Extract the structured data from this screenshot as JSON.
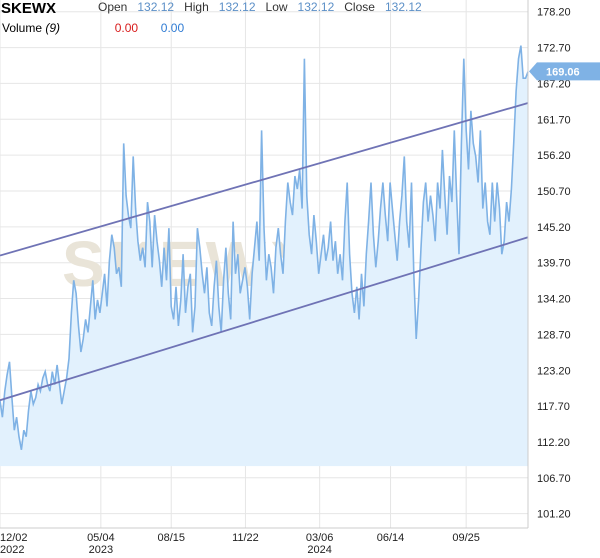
{
  "header": {
    "ticker": "SKEWX",
    "open_label": "Open",
    "open_value": "132.12",
    "high_label": "High",
    "high_value": "132.12",
    "low_label": "Low",
    "low_value": "132.12",
    "close_label": "Close",
    "close_value": "132.12",
    "volume_label": "Volume",
    "volume_period": "(9)",
    "volume_value_1": "0.00",
    "volume_value_2": "0.00"
  },
  "watermark": "SKEWX",
  "colors": {
    "line": "#7fb2e5",
    "area": "#e2f1fd",
    "trendline": "#6f73b5",
    "last_tag": "#7fb2e5",
    "grid": "#e6e6e6"
  },
  "chart_data": {
    "type": "area",
    "title": "SKEWX",
    "last_value": "169.06",
    "ylim": [
      99,
      180
    ],
    "y_ticks": [
      "178.20",
      "172.70",
      "167.20",
      "161.70",
      "156.20",
      "150.70",
      "145.20",
      "139.70",
      "134.20",
      "128.70",
      "123.20",
      "117.70",
      "112.20",
      "106.70",
      "101.20"
    ],
    "x_ticks": [
      {
        "top": "12/02",
        "bottom": "2022"
      },
      {
        "top": "05/04",
        "bottom": "2023"
      },
      {
        "top": "08/15",
        "bottom": ""
      },
      {
        "top": "11/22",
        "bottom": ""
      },
      {
        "top": "03/06",
        "bottom": "2024"
      },
      {
        "top": "06/14",
        "bottom": ""
      },
      {
        "top": "09/25",
        "bottom": ""
      }
    ],
    "x_tick_positions": [
      0,
      21.2,
      36.0,
      51.6,
      67.2,
      82.1,
      98.0
    ],
    "series": [
      {
        "values": [
          [
            0,
            118.5
          ],
          [
            0.5,
            116
          ],
          [
            1,
            120
          ],
          [
            1.5,
            122.5
          ],
          [
            2,
            124.5
          ],
          [
            2.5,
            119
          ],
          [
            3,
            114
          ],
          [
            3.5,
            116
          ],
          [
            4,
            113
          ],
          [
            4.5,
            111
          ],
          [
            5,
            114
          ],
          [
            5.5,
            113
          ],
          [
            6,
            117
          ],
          [
            6.5,
            120
          ],
          [
            7,
            118
          ],
          [
            7.5,
            119
          ],
          [
            8,
            121
          ],
          [
            8.5,
            120
          ],
          [
            9,
            122
          ],
          [
            9.5,
            123
          ],
          [
            10,
            121
          ],
          [
            10.5,
            120
          ],
          [
            11,
            123
          ],
          [
            11.5,
            121
          ],
          [
            12,
            124
          ],
          [
            12.5,
            121
          ],
          [
            13,
            118
          ],
          [
            13.5,
            120
          ],
          [
            14,
            122
          ],
          [
            14.5,
            125
          ],
          [
            15,
            132
          ],
          [
            15.5,
            137
          ],
          [
            16,
            135
          ],
          [
            16.5,
            130
          ],
          [
            17,
            126
          ],
          [
            17.5,
            128
          ],
          [
            18,
            131
          ],
          [
            18.5,
            129
          ],
          [
            19,
            133
          ],
          [
            19.5,
            137
          ],
          [
            20,
            131
          ],
          [
            20.5,
            134
          ],
          [
            21,
            132
          ],
          [
            21.5,
            135
          ],
          [
            22,
            138
          ],
          [
            22.5,
            133
          ],
          [
            23,
            140
          ],
          [
            23.5,
            144
          ],
          [
            24,
            142
          ],
          [
            24.5,
            138
          ],
          [
            25,
            139
          ],
          [
            25.5,
            136
          ],
          [
            26,
            158
          ],
          [
            26.5,
            150
          ],
          [
            27,
            147
          ],
          [
            27.5,
            145
          ],
          [
            28,
            156
          ],
          [
            28.5,
            148
          ],
          [
            29,
            143
          ],
          [
            29.5,
            140
          ],
          [
            30,
            142
          ],
          [
            30.5,
            139
          ],
          [
            31,
            149
          ],
          [
            31.5,
            146
          ],
          [
            32,
            139
          ],
          [
            32.5,
            147
          ],
          [
            33,
            143
          ],
          [
            33.5,
            140
          ],
          [
            34,
            136
          ],
          [
            34.5,
            142
          ],
          [
            35,
            137
          ],
          [
            35.5,
            145
          ],
          [
            36,
            133
          ],
          [
            36.5,
            131
          ],
          [
            37,
            136
          ],
          [
            37.5,
            130
          ],
          [
            38,
            134
          ],
          [
            38.5,
            141
          ],
          [
            39,
            132
          ],
          [
            39.5,
            136
          ],
          [
            40,
            138
          ],
          [
            40.5,
            129
          ],
          [
            41,
            133
          ],
          [
            41.5,
            145
          ],
          [
            42,
            142
          ],
          [
            42.5,
            138
          ],
          [
            43,
            135
          ],
          [
            43.5,
            139
          ],
          [
            44,
            132
          ],
          [
            44.5,
            130
          ],
          [
            45,
            136
          ],
          [
            45.5,
            140
          ],
          [
            46,
            133
          ],
          [
            46.5,
            129
          ],
          [
            47,
            137
          ],
          [
            47.5,
            142
          ],
          [
            48,
            135
          ],
          [
            48.5,
            131
          ],
          [
            49,
            146
          ],
          [
            49.5,
            138
          ],
          [
            50,
            141
          ],
          [
            50.5,
            135
          ],
          [
            51,
            137
          ],
          [
            51.5,
            139
          ],
          [
            52,
            136
          ],
          [
            52.5,
            131
          ],
          [
            53,
            138
          ],
          [
            53.5,
            142
          ],
          [
            54,
            146
          ],
          [
            54.5,
            140
          ],
          [
            55,
            160
          ],
          [
            55.5,
            145
          ],
          [
            56,
            137
          ],
          [
            56.5,
            141
          ],
          [
            57,
            139
          ],
          [
            57.5,
            135
          ],
          [
            58,
            142
          ],
          [
            58.5,
            145
          ],
          [
            59,
            141
          ],
          [
            59.5,
            138
          ],
          [
            60,
            146
          ],
          [
            60.5,
            152
          ],
          [
            61,
            149
          ],
          [
            61.5,
            147
          ],
          [
            62,
            153
          ],
          [
            62.5,
            151
          ],
          [
            63,
            154
          ],
          [
            63.5,
            148
          ],
          [
            64,
            171
          ],
          [
            64.5,
            150
          ],
          [
            65,
            144
          ],
          [
            65.5,
            141
          ],
          [
            66,
            147
          ],
          [
            66.5,
            143
          ],
          [
            67,
            138
          ],
          [
            67.5,
            141
          ],
          [
            68,
            144
          ],
          [
            68.5,
            140
          ],
          [
            69,
            142
          ],
          [
            69.5,
            146
          ],
          [
            70,
            140
          ],
          [
            70.5,
            143
          ],
          [
            71,
            138
          ],
          [
            71.5,
            141
          ],
          [
            72,
            137
          ],
          [
            72.5,
            146
          ],
          [
            73,
            152
          ],
          [
            73.5,
            141
          ],
          [
            74,
            135
          ],
          [
            74.5,
            132
          ],
          [
            75,
            136
          ],
          [
            75.5,
            131
          ],
          [
            76,
            138
          ],
          [
            76.5,
            133
          ],
          [
            77,
            141
          ],
          [
            77.5,
            146
          ],
          [
            78,
            152
          ],
          [
            78.5,
            144
          ],
          [
            79,
            139
          ],
          [
            79.5,
            143
          ],
          [
            80,
            148
          ],
          [
            80.5,
            152
          ],
          [
            81,
            147
          ],
          [
            81.5,
            143
          ],
          [
            82,
            152
          ],
          [
            82.5,
            148
          ],
          [
            83,
            144
          ],
          [
            83.5,
            140
          ],
          [
            84,
            146
          ],
          [
            84.5,
            150
          ],
          [
            85,
            156
          ],
          [
            85.5,
            146
          ],
          [
            86,
            142
          ],
          [
            86.5,
            152
          ],
          [
            87,
            138
          ],
          [
            87.5,
            128
          ],
          [
            88,
            134
          ],
          [
            88.5,
            142
          ],
          [
            89,
            149
          ],
          [
            89.5,
            152
          ],
          [
            90,
            146
          ],
          [
            90.5,
            150
          ],
          [
            91,
            147
          ],
          [
            91.5,
            143
          ],
          [
            92,
            152
          ],
          [
            92.5,
            148
          ],
          [
            93,
            157
          ],
          [
            93.5,
            150
          ],
          [
            94,
            144
          ],
          [
            94.5,
            153
          ],
          [
            95,
            149
          ],
          [
            95.5,
            160
          ],
          [
            96,
            150
          ],
          [
            96.5,
            141
          ],
          [
            97,
            158
          ],
          [
            97.5,
            171
          ],
          [
            98,
            160
          ],
          [
            98.5,
            154
          ],
          [
            99,
            163
          ],
          [
            99.5,
            158
          ],
          [
            100,
            156
          ],
          [
            100.5,
            152
          ],
          [
            101,
            160
          ],
          [
            101.5,
            148
          ],
          [
            102,
            152
          ],
          [
            102.5,
            146
          ],
          [
            103,
            144
          ],
          [
            103.5,
            152
          ],
          [
            104,
            146
          ],
          [
            104.5,
            152
          ],
          [
            105,
            148
          ],
          [
            105.5,
            141
          ],
          [
            106,
            143
          ],
          [
            106.5,
            149
          ],
          [
            107,
            146
          ],
          [
            107.5,
            151
          ],
          [
            108,
            158
          ],
          [
            108.5,
            166
          ],
          [
            109,
            171
          ],
          [
            109.5,
            173
          ],
          [
            110,
            168
          ],
          [
            110.5,
            168
          ],
          [
            111,
            169
          ]
        ]
      }
    ],
    "trendlines": [
      {
        "x1": 0,
        "y1": 140.8,
        "x2": 111,
        "y2": 164.2
      },
      {
        "x1": 0,
        "y1": 118.6,
        "x2": 111,
        "y2": 143.6
      }
    ]
  }
}
